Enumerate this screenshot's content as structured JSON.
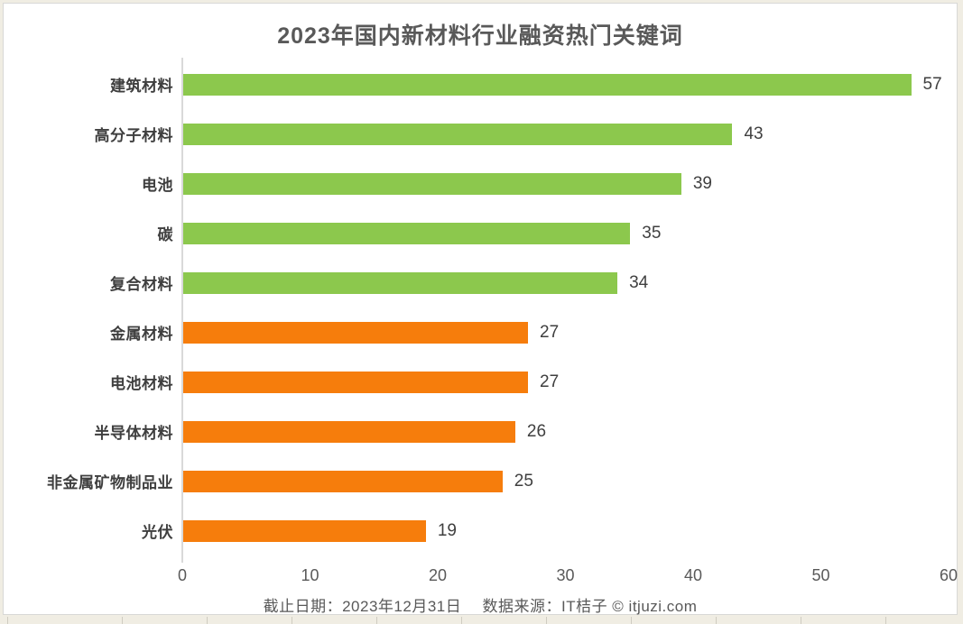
{
  "title": "2023年国内新材料行业融资热门关键词",
  "chart_data": {
    "type": "bar",
    "orientation": "horizontal",
    "title": "2023年国内新材料行业融资热门关键词",
    "categories": [
      "建筑材料",
      "高分子材料",
      "电池",
      "碳",
      "复合材料",
      "金属材料",
      "电池材料",
      "半导体材料",
      "非金属矿物制品业",
      "光伏"
    ],
    "values": [
      57,
      43,
      39,
      35,
      34,
      27,
      27,
      26,
      25,
      19
    ],
    "bar_colors": [
      "#8CC84D",
      "#8CC84D",
      "#8CC84D",
      "#8CC84D",
      "#8CC84D",
      "#F67D0C",
      "#F67D0C",
      "#F67D0C",
      "#F67D0C",
      "#F67D0C"
    ],
    "value_labels_shown": true,
    "xlabel": "",
    "ylabel": "",
    "xlim": [
      0,
      60
    ],
    "xticks": [
      0,
      10,
      20,
      30,
      40,
      50,
      60
    ],
    "grid": false,
    "legend": false
  },
  "footer": {
    "cutoff": "截止日期：2023年12月31日",
    "source": "数据来源：IT桔子 © itjuzi.com"
  },
  "colors": {
    "green": "#8CC84D",
    "orange": "#F67D0C",
    "axis_line": "#D9D9D9",
    "title_text": "#595959",
    "label_text": "#3F3F3F",
    "background": "#F0EDE3"
  }
}
